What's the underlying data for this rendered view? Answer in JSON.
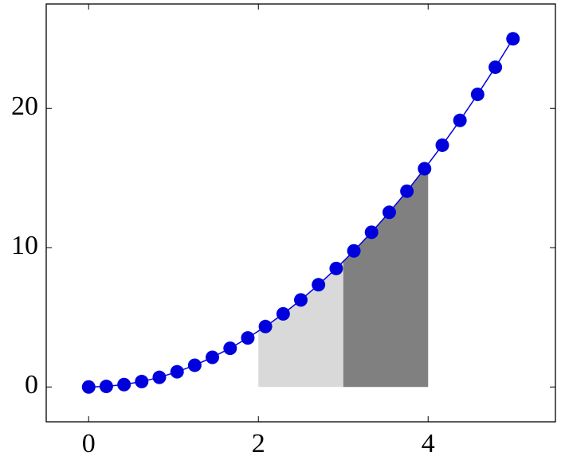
{
  "chart_data": {
    "type": "line",
    "x": [
      0,
      0.208,
      0.417,
      0.625,
      0.833,
      1.042,
      1.25,
      1.458,
      1.667,
      1.875,
      2.083,
      2.292,
      2.5,
      2.708,
      2.917,
      3.125,
      3.333,
      3.542,
      3.75,
      3.958,
      4.167,
      4.375,
      4.583,
      4.792,
      5
    ],
    "series": [
      {
        "color": "#0000dd",
        "values": [
          0,
          0.04,
          0.17,
          0.39,
          0.69,
          1.09,
          1.56,
          2.13,
          2.78,
          3.52,
          4.34,
          5.25,
          6.25,
          7.34,
          8.51,
          9.77,
          11.11,
          12.54,
          14.06,
          15.67,
          17.36,
          19.14,
          21.01,
          22.96,
          25
        ]
      }
    ],
    "areas": [
      {
        "color": "#d9d9d9",
        "x": [
          2,
          2.25,
          2.5,
          2.75,
          3
        ],
        "values": [
          4,
          5.06,
          6.25,
          7.56,
          9
        ]
      },
      {
        "color": "#808080",
        "x": [
          3,
          3.25,
          3.5,
          3.75,
          4
        ],
        "values": [
          9,
          10.56,
          12.25,
          14.06,
          16
        ]
      }
    ],
    "xlim": [
      -0.5,
      5.5
    ],
    "ylim": [
      -2.5,
      27.5
    ],
    "xticks": [
      0,
      2,
      4
    ],
    "yticks": [
      0,
      10,
      20
    ]
  }
}
